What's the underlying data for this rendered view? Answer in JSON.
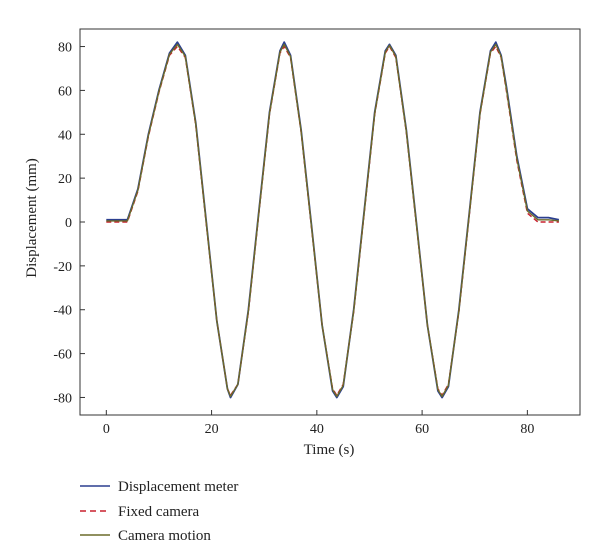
{
  "chart_data": {
    "type": "line",
    "xlabel": "Time (s)",
    "ylabel": "Displacement (mm)",
    "xlim": [
      -5,
      90
    ],
    "ylim": [
      -88,
      88
    ],
    "x_ticks": [
      0,
      20,
      40,
      60,
      80
    ],
    "y_ticks": [
      -80,
      -60,
      -40,
      -20,
      0,
      20,
      40,
      60,
      80
    ],
    "x_tick_labels": [
      "0",
      "20",
      "40",
      "60",
      "80"
    ],
    "y_tick_labels": [
      "-80",
      "-60",
      "-40",
      "-20",
      "0",
      "20",
      "40",
      "60",
      "80"
    ],
    "grid": false,
    "legend_position": "bottom-left, below plot",
    "legend": [
      {
        "label": "Displacement meter",
        "color": "#2b3f8f",
        "style": "solid"
      },
      {
        "label": "Fixed camera",
        "color": "#c8202f",
        "style": "dashed"
      },
      {
        "label": "Camera motion",
        "color": "#6b6b2a",
        "style": "solid"
      }
    ],
    "series": [
      {
        "name": "Displacement meter",
        "color": "#2b3f8f",
        "style": "solid",
        "x": [
          0,
          2,
          4,
          6,
          8,
          10,
          12,
          13.5,
          15,
          17,
          19,
          21,
          23,
          23.6,
          25,
          27,
          29,
          31,
          33,
          33.8,
          35,
          37,
          39,
          41,
          43,
          43.8,
          45,
          47,
          49,
          51,
          53,
          53.8,
          55,
          57,
          59,
          61,
          63,
          63.8,
          65,
          67,
          69,
          71,
          73,
          74,
          75,
          76,
          78,
          80,
          82,
          84,
          86
        ],
        "y": [
          1,
          1,
          1,
          15,
          40,
          60,
          77,
          82,
          76,
          45,
          0,
          -45,
          -76,
          -80,
          -74,
          -40,
          5,
          50,
          78,
          82,
          76,
          42,
          -2,
          -47,
          -77,
          -80,
          -75,
          -40,
          5,
          50,
          78,
          81,
          76,
          42,
          -2,
          -47,
          -77,
          -80,
          -75,
          -40,
          5,
          50,
          78,
          82,
          76,
          62,
          30,
          6,
          2,
          2,
          1
        ]
      },
      {
        "name": "Fixed camera",
        "color": "#c8202f",
        "style": "dashed",
        "x": [
          0,
          2,
          4,
          6,
          8,
          10,
          12,
          13.5,
          15,
          17,
          19,
          21,
          23,
          23.6,
          25,
          27,
          29,
          31,
          33,
          33.8,
          35,
          37,
          39,
          41,
          43,
          43.8,
          45,
          47,
          49,
          51,
          53,
          53.8,
          55,
          57,
          59,
          61,
          63,
          63.8,
          65,
          67,
          69,
          71,
          73,
          74,
          75,
          76,
          78,
          80,
          82,
          84,
          86
        ],
        "y": [
          0,
          0,
          0,
          14,
          39,
          59,
          76,
          80,
          75,
          44,
          -1,
          -45,
          -76,
          -79,
          -74,
          -41,
          4,
          49,
          77,
          80,
          75,
          41,
          -3,
          -47,
          -76,
          -79,
          -74,
          -41,
          4,
          49,
          77,
          80,
          75,
          41,
          -3,
          -47,
          -76,
          -79,
          -74,
          -41,
          4,
          49,
          77,
          80,
          75,
          60,
          28,
          4,
          0,
          0,
          0
        ]
      },
      {
        "name": "Camera motion",
        "color": "#6b6b2a",
        "style": "solid",
        "x": [
          0,
          2,
          4,
          6,
          8,
          10,
          12,
          13.5,
          15,
          17,
          19,
          21,
          23,
          23.6,
          25,
          27,
          29,
          31,
          33,
          33.8,
          35,
          37,
          39,
          41,
          43,
          43.8,
          45,
          47,
          49,
          51,
          53,
          53.8,
          55,
          57,
          59,
          61,
          63,
          63.8,
          65,
          67,
          69,
          71,
          73,
          74,
          75,
          76,
          78,
          80,
          82,
          84,
          86
        ],
        "y": [
          0.5,
          0.5,
          0.5,
          14.5,
          39.5,
          59.5,
          76.5,
          81,
          75.5,
          44.5,
          -0.5,
          -45,
          -76,
          -79.5,
          -74,
          -40.5,
          4.5,
          49.5,
          77.5,
          81,
          75.5,
          41.5,
          -2.5,
          -47,
          -76.5,
          -79.5,
          -74.5,
          -40.5,
          4.5,
          49.5,
          77.5,
          80.5,
          75.5,
          41.5,
          -2.5,
          -47,
          -76.5,
          -79.5,
          -74.5,
          -40.5,
          4.5,
          49.5,
          77.5,
          81,
          75.5,
          61,
          29,
          5,
          1,
          1,
          0.5
        ]
      }
    ]
  }
}
